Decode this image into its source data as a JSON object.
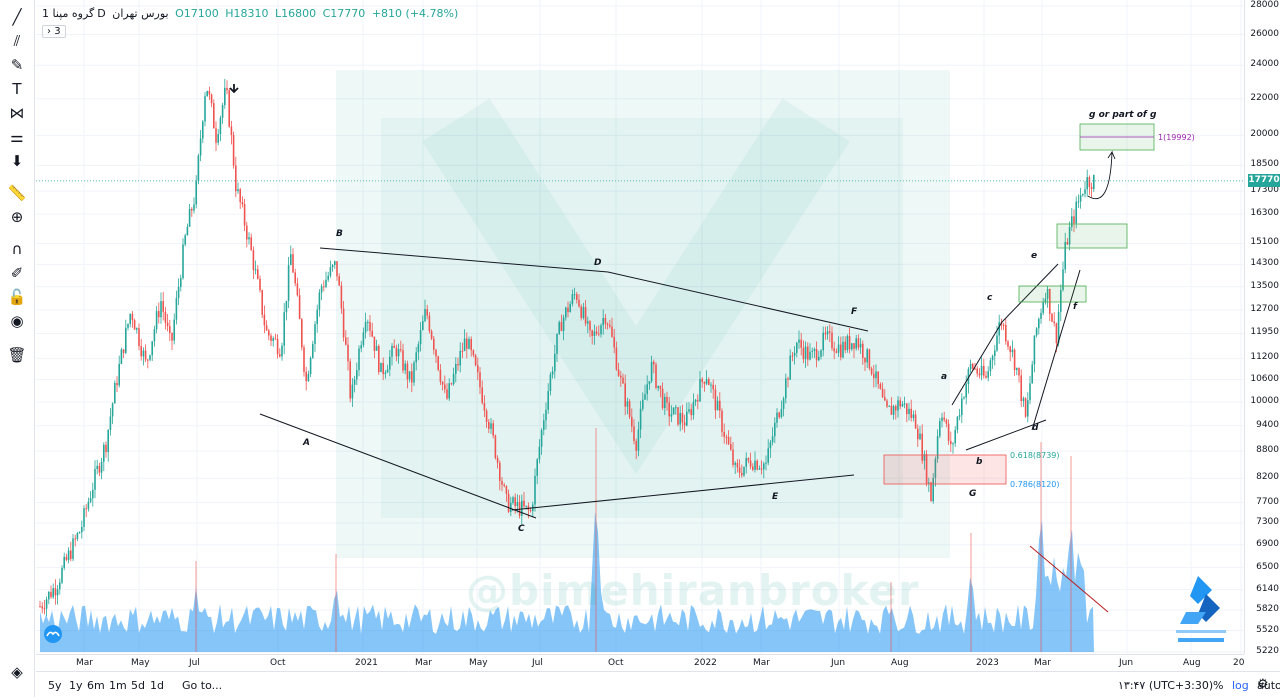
{
  "legend": {
    "symbol": "گروه مپنا",
    "interval": "1D",
    "exchange": "بورس تهران",
    "open": "O17100",
    "high": "H18310",
    "low": "L16800",
    "close": "C17770",
    "change": "+810 (+4.78%)"
  },
  "collapse_count": "3",
  "price_tag": "17770",
  "watermark": "@bimehiranbroker",
  "timeframes": [
    "5y",
    "1y",
    "6m",
    "1m",
    "5d",
    "1d"
  ],
  "goto_label": "Go to...",
  "clock": "۱۳:۴۷ (UTC+3:30)",
  "scale_options": {
    "percent": "%",
    "log": "log",
    "auto": "auto"
  },
  "annotations": [
    "A",
    "B",
    "C",
    "D",
    "E",
    "F",
    "G",
    "a",
    "b",
    "c",
    "d",
    "e",
    "f",
    "g or part of g"
  ],
  "fib_labels": {
    "f618": "0.618(8739)",
    "f786": "0.786(8120)",
    "target": "1(19992)"
  },
  "colors": {
    "up": "#26a69a",
    "down": "#ef5350",
    "fib_target": "#9c27b0"
  },
  "chart_data": {
    "type": "candlestick",
    "log_scale": true,
    "ylim": [
      5220,
      28000
    ],
    "y_ticks": [
      28000,
      26000,
      24000,
      22000,
      20000,
      18500,
      17300,
      16300,
      15100,
      14300,
      13500,
      12700,
      11950,
      11200,
      10600,
      10000,
      9400,
      8800,
      8200,
      7700,
      7300,
      6900,
      6500,
      6140,
      5820,
      5520,
      5220
    ],
    "x_ticks": [
      "Mar",
      "May",
      "Jul",
      "Oct",
      "2021",
      "Mar",
      "May",
      "Jul",
      "Oct",
      "2022",
      "Mar",
      "Jun",
      "Aug",
      "2023",
      "Mar",
      "Jun",
      "Aug",
      "20"
    ],
    "price_path": [
      [
        0,
        5800
      ],
      [
        20,
        6200
      ],
      [
        45,
        7200
      ],
      [
        70,
        9000
      ],
      [
        95,
        12700
      ],
      [
        110,
        11000
      ],
      [
        125,
        13000
      ],
      [
        135,
        11500
      ],
      [
        150,
        15500
      ],
      [
        160,
        17300
      ],
      [
        170,
        23000
      ],
      [
        180,
        20000
      ],
      [
        190,
        22500
      ],
      [
        200,
        17500
      ],
      [
        215,
        14800
      ],
      [
        230,
        12000
      ],
      [
        245,
        11500
      ],
      [
        255,
        14700
      ],
      [
        270,
        10500
      ],
      [
        285,
        13500
      ],
      [
        300,
        14300
      ],
      [
        315,
        10000
      ],
      [
        330,
        12700
      ],
      [
        345,
        10800
      ],
      [
        360,
        11500
      ],
      [
        375,
        10500
      ],
      [
        390,
        12700
      ],
      [
        410,
        10000
      ],
      [
        430,
        11800
      ],
      [
        450,
        9800
      ],
      [
        470,
        7700
      ],
      [
        495,
        7500
      ],
      [
        510,
        10000
      ],
      [
        525,
        12300
      ],
      [
        540,
        13300
      ],
      [
        555,
        11700
      ],
      [
        570,
        12600
      ],
      [
        585,
        10500
      ],
      [
        600,
        9000
      ],
      [
        615,
        11000
      ],
      [
        630,
        9800
      ],
      [
        650,
        9500
      ],
      [
        670,
        10800
      ],
      [
        685,
        9500
      ],
      [
        700,
        8300
      ],
      [
        715,
        8600
      ],
      [
        730,
        8500
      ],
      [
        745,
        10000
      ],
      [
        760,
        11700
      ],
      [
        775,
        11200
      ],
      [
        790,
        11800
      ],
      [
        805,
        11500
      ],
      [
        820,
        11800
      ],
      [
        835,
        11000
      ],
      [
        850,
        9700
      ],
      [
        865,
        10000
      ],
      [
        880,
        9500
      ],
      [
        895,
        7800
      ],
      [
        905,
        9900
      ],
      [
        915,
        8800
      ],
      [
        925,
        10000
      ],
      [
        935,
        11000
      ],
      [
        950,
        10600
      ],
      [
        965,
        12400
      ],
      [
        980,
        11000
      ],
      [
        990,
        9500
      ],
      [
        1000,
        12000
      ],
      [
        1010,
        13500
      ],
      [
        1020,
        11800
      ],
      [
        1030,
        15100
      ],
      [
        1040,
        16500
      ],
      [
        1050,
        17800
      ]
    ],
    "volume_spikes": [
      [
        160,
        65
      ],
      [
        300,
        70
      ],
      [
        560,
        160
      ],
      [
        855,
        50
      ],
      [
        935,
        85
      ],
      [
        1005,
        150
      ],
      [
        1035,
        140
      ]
    ]
  }
}
